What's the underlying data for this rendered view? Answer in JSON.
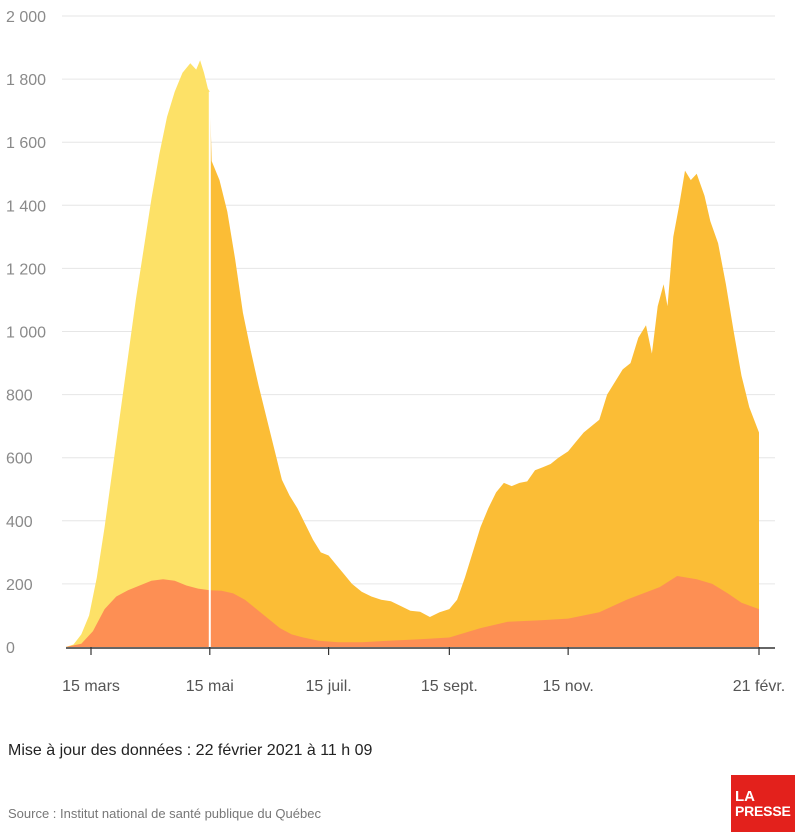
{
  "chart_data": {
    "type": "area",
    "y_ticks": [
      "2 000",
      "1 800",
      "1 600",
      "1 400",
      "1 200",
      "1 000",
      "800",
      "600",
      "400",
      "200",
      "0"
    ],
    "y_tick_values": [
      2000,
      1800,
      1600,
      1400,
      1200,
      1000,
      800,
      600,
      400,
      200,
      0
    ],
    "ylim": [
      0,
      2000
    ],
    "x_tick_labels": [
      "15 mars",
      "15 mai",
      "15 juil.",
      "15 sept.",
      "15 nov.",
      "21 févr."
    ],
    "x_tick_dates": [
      "2020-03-15",
      "2020-05-15",
      "2020-07-15",
      "2020-09-15",
      "2020-11-15",
      "2021-02-21"
    ],
    "xlim": [
      "2020-03-01",
      "2021-02-21"
    ],
    "grid": true,
    "colors": {
      "total_before_may": "#fde167",
      "total": "#fbbd36",
      "lower": "#fd8f54",
      "grid": "#e6e6e6",
      "divider": "#ffffff"
    },
    "divider_date": "2020-05-15",
    "series": [
      {
        "points": [
          [
            "2020-03-02",
            0
          ],
          [
            "2020-03-06",
            8
          ],
          [
            "2020-03-10",
            40
          ],
          [
            "2020-03-14",
            100
          ],
          [
            "2020-03-18",
            220
          ],
          [
            "2020-03-22",
            380
          ],
          [
            "2020-03-26",
            560
          ],
          [
            "2020-03-30",
            740
          ],
          [
            "2020-04-03",
            920
          ],
          [
            "2020-04-07",
            1100
          ],
          [
            "2020-04-11",
            1260
          ],
          [
            "2020-04-15",
            1420
          ],
          [
            "2020-04-19",
            1560
          ],
          [
            "2020-04-23",
            1680
          ],
          [
            "2020-04-27",
            1760
          ],
          [
            "2020-05-01",
            1820
          ],
          [
            "2020-05-05",
            1850
          ],
          [
            "2020-05-08",
            1830
          ],
          [
            "2020-05-10",
            1860
          ],
          [
            "2020-05-12",
            1820
          ],
          [
            "2020-05-14",
            1770
          ],
          [
            "2020-05-15",
            1760
          ],
          [
            "2020-05-16",
            1540
          ],
          [
            "2020-05-20",
            1480
          ],
          [
            "2020-05-24",
            1380
          ],
          [
            "2020-05-28",
            1230
          ],
          [
            "2020-06-01",
            1060
          ],
          [
            "2020-06-05",
            940
          ],
          [
            "2020-06-09",
            830
          ],
          [
            "2020-06-13",
            730
          ],
          [
            "2020-06-17",
            630
          ],
          [
            "2020-06-21",
            530
          ],
          [
            "2020-06-25",
            480
          ],
          [
            "2020-06-29",
            440
          ],
          [
            "2020-07-03",
            390
          ],
          [
            "2020-07-07",
            340
          ],
          [
            "2020-07-11",
            300
          ],
          [
            "2020-07-15",
            290
          ],
          [
            "2020-07-19",
            260
          ],
          [
            "2020-07-23",
            230
          ],
          [
            "2020-07-27",
            200
          ],
          [
            "2020-08-01",
            175
          ],
          [
            "2020-08-06",
            160
          ],
          [
            "2020-08-11",
            150
          ],
          [
            "2020-08-16",
            145
          ],
          [
            "2020-08-21",
            130
          ],
          [
            "2020-08-26",
            115
          ],
          [
            "2020-08-31",
            112
          ],
          [
            "2020-09-05",
            95
          ],
          [
            "2020-09-10",
            110
          ],
          [
            "2020-09-15",
            120
          ],
          [
            "2020-09-19",
            150
          ],
          [
            "2020-09-23",
            220
          ],
          [
            "2020-09-27",
            300
          ],
          [
            "2020-10-01",
            380
          ],
          [
            "2020-10-05",
            440
          ],
          [
            "2020-10-09",
            490
          ],
          [
            "2020-10-13",
            520
          ],
          [
            "2020-10-17",
            510
          ],
          [
            "2020-10-21",
            520
          ],
          [
            "2020-10-25",
            525
          ],
          [
            "2020-10-29",
            560
          ],
          [
            "2020-11-02",
            570
          ],
          [
            "2020-11-06",
            580
          ],
          [
            "2020-11-10",
            600
          ],
          [
            "2020-11-15",
            620
          ],
          [
            "2020-11-19",
            650
          ],
          [
            "2020-11-23",
            680
          ],
          [
            "2020-11-27",
            700
          ],
          [
            "2020-12-01",
            720
          ],
          [
            "2020-12-05",
            800
          ],
          [
            "2020-12-09",
            840
          ],
          [
            "2020-12-13",
            880
          ],
          [
            "2020-12-17",
            900
          ],
          [
            "2020-12-21",
            980
          ],
          [
            "2020-12-25",
            1020
          ],
          [
            "2020-12-28",
            930
          ],
          [
            "2020-12-31",
            1080
          ],
          [
            "2021-01-03",
            1150
          ],
          [
            "2021-01-05",
            1080
          ],
          [
            "2021-01-08",
            1300
          ],
          [
            "2021-01-11",
            1400
          ],
          [
            "2021-01-14",
            1510
          ],
          [
            "2021-01-17",
            1480
          ],
          [
            "2021-01-20",
            1500
          ],
          [
            "2021-01-24",
            1430
          ],
          [
            "2021-01-27",
            1350
          ],
          [
            "2021-01-31",
            1280
          ],
          [
            "2021-02-04",
            1150
          ],
          [
            "2021-02-08",
            1000
          ],
          [
            "2021-02-12",
            860
          ],
          [
            "2021-02-16",
            760
          ],
          [
            "2021-02-21",
            680
          ]
        ]
      },
      {
        "points": [
          [
            "2020-03-02",
            0
          ],
          [
            "2020-03-10",
            10
          ],
          [
            "2020-03-16",
            50
          ],
          [
            "2020-03-22",
            120
          ],
          [
            "2020-03-28",
            160
          ],
          [
            "2020-04-03",
            180
          ],
          [
            "2020-04-09",
            195
          ],
          [
            "2020-04-15",
            210
          ],
          [
            "2020-04-21",
            215
          ],
          [
            "2020-04-27",
            210
          ],
          [
            "2020-05-03",
            195
          ],
          [
            "2020-05-09",
            185
          ],
          [
            "2020-05-15",
            180
          ],
          [
            "2020-05-21",
            178
          ],
          [
            "2020-05-27",
            170
          ],
          [
            "2020-06-02",
            150
          ],
          [
            "2020-06-08",
            120
          ],
          [
            "2020-06-14",
            90
          ],
          [
            "2020-06-20",
            60
          ],
          [
            "2020-06-26",
            40
          ],
          [
            "2020-07-02",
            30
          ],
          [
            "2020-07-10",
            20
          ],
          [
            "2020-07-20",
            15
          ],
          [
            "2020-08-01",
            15
          ],
          [
            "2020-08-15",
            20
          ],
          [
            "2020-09-01",
            25
          ],
          [
            "2020-09-15",
            30
          ],
          [
            "2020-10-01",
            60
          ],
          [
            "2020-10-15",
            80
          ],
          [
            "2020-11-01",
            85
          ],
          [
            "2020-11-15",
            90
          ],
          [
            "2020-12-01",
            110
          ],
          [
            "2020-12-15",
            150
          ],
          [
            "2021-01-01",
            190
          ],
          [
            "2021-01-10",
            225
          ],
          [
            "2021-01-20",
            215
          ],
          [
            "2021-01-28",
            200
          ],
          [
            "2021-02-05",
            170
          ],
          [
            "2021-02-12",
            140
          ],
          [
            "2021-02-21",
            120
          ]
        ]
      }
    ]
  },
  "footer": {
    "update_text": "Mise à jour des données : 22 février 2021 à 11 h 09",
    "source_text": "Source : Institut national de santé publique du Québec"
  },
  "logo": {
    "line1": "LA",
    "line2": "PRESSE"
  }
}
